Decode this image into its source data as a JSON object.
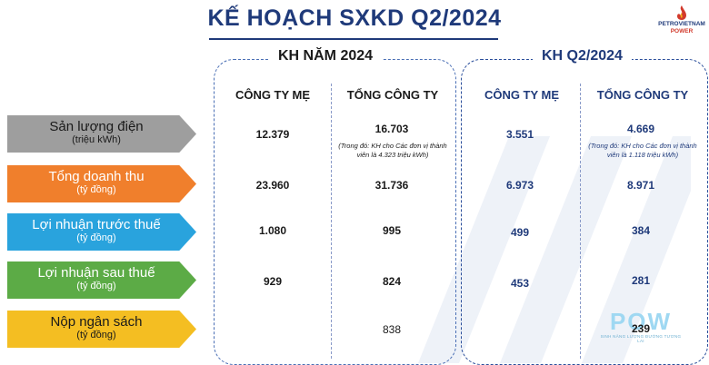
{
  "title": "KẾ HOẠCH SXKD Q2/2024",
  "logo": {
    "name": "PETROVIETNAM",
    "sub": "POWER"
  },
  "panels": {
    "year": {
      "title": "KH NĂM 2024",
      "col1": "CÔNG TY MẸ",
      "col2": "TỔNG CÔNG TY"
    },
    "q2": {
      "title": "KH Q2/2024",
      "col1": "CÔNG TY MẸ",
      "col2": "TỔNG CÔNG TY"
    }
  },
  "rows": [
    {
      "label": "Sản lượng điện",
      "unit": "(triệu kWh)",
      "color": "#9e9e9e",
      "year_parent": "12.379",
      "year_total": "16.703",
      "year_note": "(Trong đó: KH cho Các đơn vị thành viên là 4.323 triệu kWh)",
      "q2_parent": "3.551",
      "q2_total": "4.669",
      "q2_note": "(Trong đó: KH cho Các đơn vị thành viên là 1.118 triệu kWh)"
    },
    {
      "label": "Tổng doanh thu",
      "unit": "(tỷ đồng)",
      "color": "#f07f2c",
      "year_parent": "23.960",
      "year_total": "31.736",
      "q2_parent": "6.973",
      "q2_total": "8.971"
    },
    {
      "label": "Lợi nhuận trước thuế",
      "unit": "(tỷ đồng)",
      "color": "#29a3dd",
      "year_parent": "1.080",
      "year_total": "995",
      "q2_parent": "499",
      "q2_total": "384"
    },
    {
      "label": "Lợi nhuận sau thuế",
      "unit": "(tỷ đồng)",
      "color": "#5cab46",
      "year_parent": "929",
      "year_total": "824",
      "q2_parent": "453",
      "q2_total": "281"
    },
    {
      "label": "Nộp ngân sách",
      "unit": "(tỷ đồng)",
      "color": "#f4be22",
      "year_total": "838",
      "q2_total": "239"
    }
  ],
  "pow": {
    "text": "POW",
    "slogan": "SINH NĂNG LƯỢNG ĐƯỜNG TƯƠNG LAI"
  }
}
